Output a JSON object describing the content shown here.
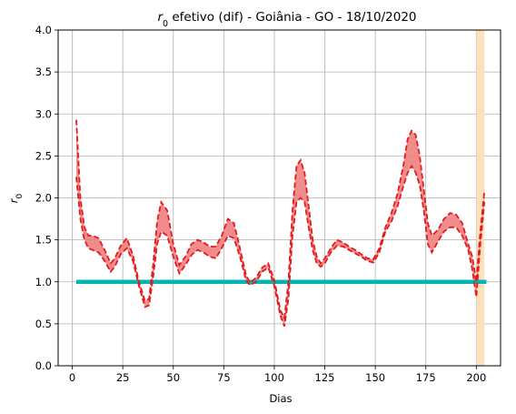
{
  "chart_data": {
    "type": "line",
    "title": {
      "r_symbol": "r",
      "r_subscript": "0",
      "rest": " efetivo (dif) - Goiânia - GO - 18/10/2020"
    },
    "xlabel": "Dias",
    "ylabel": {
      "symbol": "r",
      "subscript": "0"
    },
    "xlim": [
      -7,
      212
    ],
    "ylim": [
      0,
      4
    ],
    "xticks": [
      0,
      25,
      50,
      75,
      100,
      125,
      150,
      175,
      200
    ],
    "xtick_labels": [
      "0",
      "25",
      "50",
      "75",
      "100",
      "125",
      "150",
      "175",
      "200"
    ],
    "yticks": [
      0,
      0.5,
      1,
      1.5,
      2,
      2.5,
      3,
      3.5,
      4
    ],
    "ytick_labels": [
      "0.0",
      "0.5",
      "1.0",
      "1.5",
      "2.0",
      "2.5",
      "3.0",
      "3.5",
      "4.0"
    ],
    "grid": true,
    "highlight_band": {
      "x0": 200,
      "x1": 204,
      "color": "#ffe0bd"
    },
    "reference_line": {
      "y": 1.0,
      "x0": 2,
      "x1": 205,
      "color": "#00b5b2"
    },
    "series": [
      {
        "role": "upper",
        "color": "#e41a1c",
        "x": [
          2,
          4,
          6,
          8,
          10,
          13,
          16,
          19,
          21,
          24,
          27,
          30,
          33,
          36,
          38,
          40,
          42,
          44,
          47,
          50,
          53,
          56,
          59,
          62,
          65,
          68,
          71,
          74,
          77,
          80,
          83,
          86,
          88,
          91,
          94,
          97,
          100,
          103,
          105,
          107,
          109,
          111,
          113,
          115,
          117,
          119,
          121,
          123,
          125,
          128,
          131,
          134,
          137,
          140,
          143,
          146,
          149,
          152,
          155,
          158,
          161,
          164,
          166,
          168,
          170,
          172,
          174,
          176,
          178,
          181,
          184,
          187,
          190,
          193,
          196,
          198,
          200,
          202,
          204
        ],
        "values": [
          2.93,
          2.0,
          1.65,
          1.55,
          1.55,
          1.52,
          1.38,
          1.22,
          1.28,
          1.43,
          1.52,
          1.32,
          1.0,
          0.77,
          0.8,
          1.2,
          1.72,
          1.95,
          1.85,
          1.45,
          1.2,
          1.3,
          1.45,
          1.5,
          1.47,
          1.42,
          1.42,
          1.55,
          1.75,
          1.7,
          1.4,
          1.08,
          0.99,
          1.05,
          1.17,
          1.22,
          1.02,
          0.66,
          0.57,
          1.0,
          1.85,
          2.38,
          2.45,
          2.3,
          1.9,
          1.5,
          1.3,
          1.22,
          1.28,
          1.4,
          1.5,
          1.47,
          1.42,
          1.38,
          1.33,
          1.28,
          1.27,
          1.4,
          1.65,
          1.82,
          2.05,
          2.4,
          2.7,
          2.8,
          2.75,
          2.5,
          2.1,
          1.7,
          1.55,
          1.62,
          1.75,
          1.82,
          1.8,
          1.7,
          1.45,
          1.3,
          1.0,
          1.6,
          2.08
        ]
      },
      {
        "role": "lower",
        "color": "#e41a1c",
        "x": [
          2,
          4,
          6,
          8,
          10,
          13,
          16,
          19,
          21,
          24,
          27,
          30,
          33,
          36,
          38,
          40,
          42,
          44,
          47,
          50,
          53,
          56,
          59,
          62,
          65,
          68,
          71,
          74,
          77,
          80,
          83,
          86,
          88,
          91,
          94,
          97,
          100,
          103,
          105,
          107,
          109,
          111,
          113,
          115,
          117,
          119,
          121,
          123,
          125,
          128,
          131,
          134,
          137,
          140,
          143,
          146,
          149,
          152,
          155,
          158,
          161,
          164,
          166,
          168,
          170,
          172,
          174,
          176,
          178,
          181,
          184,
          187,
          190,
          193,
          196,
          198,
          200,
          202,
          204
        ],
        "values": [
          2.25,
          1.75,
          1.5,
          1.4,
          1.38,
          1.35,
          1.25,
          1.12,
          1.18,
          1.33,
          1.4,
          1.25,
          0.95,
          0.7,
          0.72,
          1.05,
          1.45,
          1.6,
          1.55,
          1.3,
          1.1,
          1.2,
          1.32,
          1.38,
          1.35,
          1.3,
          1.28,
          1.4,
          1.55,
          1.52,
          1.3,
          1.02,
          0.96,
          1.0,
          1.12,
          1.17,
          0.95,
          0.6,
          0.47,
          0.8,
          1.55,
          1.95,
          2.0,
          1.95,
          1.65,
          1.38,
          1.22,
          1.18,
          1.22,
          1.35,
          1.43,
          1.42,
          1.38,
          1.34,
          1.3,
          1.25,
          1.23,
          1.35,
          1.6,
          1.72,
          1.9,
          2.15,
          2.3,
          2.38,
          2.3,
          2.15,
          1.85,
          1.45,
          1.35,
          1.48,
          1.6,
          1.65,
          1.65,
          1.55,
          1.38,
          1.15,
          0.82,
          1.45,
          1.95
        ]
      }
    ],
    "fill_color": "#f08080"
  }
}
